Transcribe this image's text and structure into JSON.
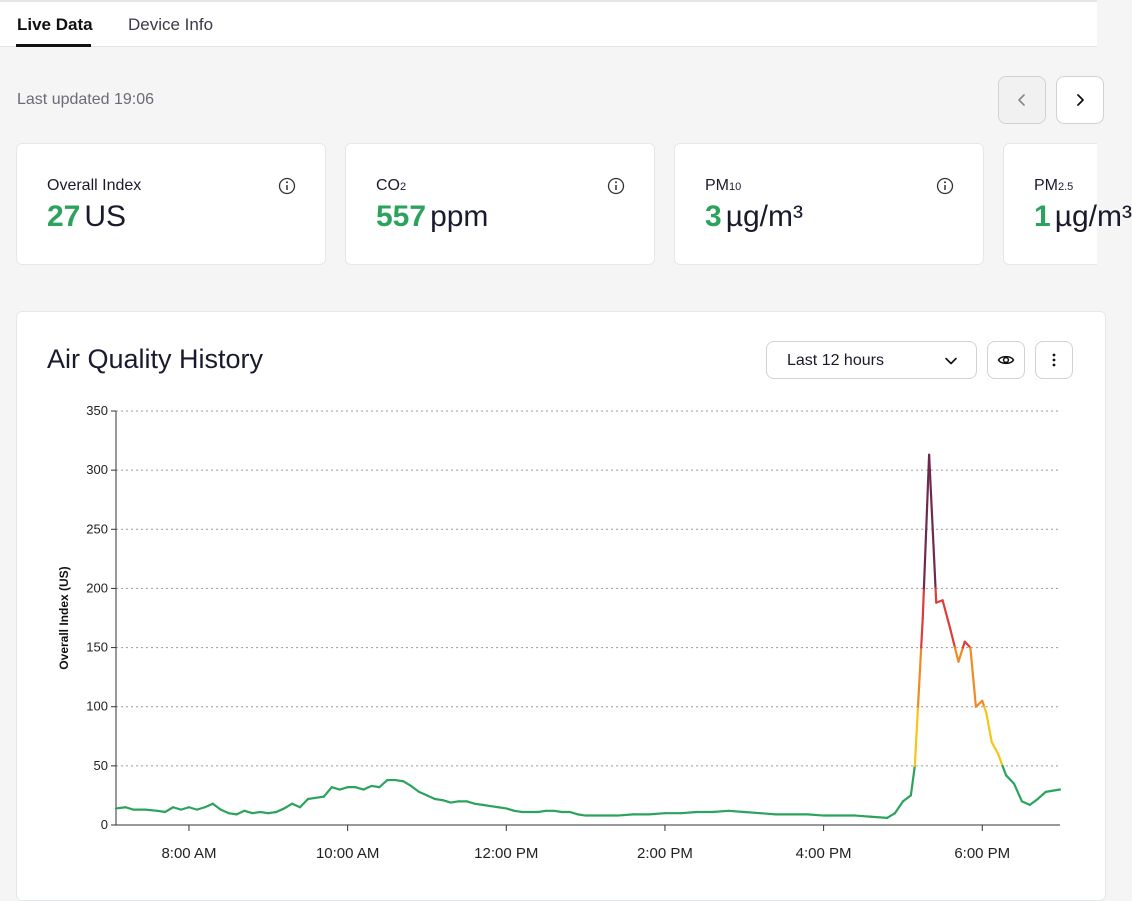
{
  "tabs": [
    {
      "label": "Live Data",
      "active": true
    },
    {
      "label": "Device Info",
      "active": false
    }
  ],
  "status": {
    "last_updated": "Last updated 19:06"
  },
  "cards": [
    {
      "label": "Overall Index",
      "sub": "",
      "value": "27",
      "unit": "US"
    },
    {
      "label": "CO",
      "sub": "2",
      "value": "557",
      "unit": "ppm"
    },
    {
      "label": "PM",
      "sub": "10",
      "value": "3",
      "unit": "µg/m³"
    },
    {
      "label": "PM",
      "sub": "2.5",
      "value": "1",
      "unit": "µg/m³"
    }
  ],
  "history": {
    "title": "Air Quality History",
    "range_selected": "Last 12 hours"
  },
  "icons": {
    "prev": "chevron-left-icon",
    "next": "chevron-right-icon",
    "info": "info-icon",
    "dropdown": "chevron-down-icon",
    "eye": "eye-icon",
    "more": "more-vertical-icon"
  },
  "colors": {
    "good": "#2ca35c",
    "moderate": "#f5c518",
    "sensitive": "#f08a24",
    "unhealthy": "#e03b3b",
    "very_unhealthy": "#6e2a4e"
  },
  "chart_data": {
    "type": "line",
    "ylabel": "Overall Index (US)",
    "xlabel": "",
    "ylim": [
      0,
      350
    ],
    "yticks": [
      0,
      50,
      100,
      150,
      200,
      250,
      300,
      350
    ],
    "xticks": [
      "8:00 AM",
      "10:00 AM",
      "12:00 PM",
      "2:00 PM",
      "4:00 PM",
      "6:00 PM"
    ],
    "xtick_hours": [
      8,
      10,
      12,
      14,
      16,
      18
    ],
    "xlim_hours": [
      7.08,
      18.98
    ],
    "grid": true,
    "thresholds": [
      50,
      100,
      150,
      200,
      300
    ],
    "series": [
      {
        "x_hours": [
          7.08,
          7.2,
          7.3,
          7.45,
          7.6,
          7.7,
          7.8,
          7.9,
          8.0,
          8.1,
          8.2,
          8.3,
          8.4,
          8.5,
          8.6,
          8.7,
          8.8,
          8.9,
          9.0,
          9.1,
          9.2,
          9.3,
          9.4,
          9.5,
          9.6,
          9.7,
          9.8,
          9.9,
          10.0,
          10.1,
          10.2,
          10.3,
          10.4,
          10.5,
          10.6,
          10.7,
          10.8,
          10.9,
          11.0,
          11.1,
          11.2,
          11.3,
          11.4,
          11.5,
          11.6,
          11.7,
          11.8,
          11.9,
          12.0,
          12.1,
          12.2,
          12.3,
          12.4,
          12.5,
          12.6,
          12.7,
          12.8,
          12.9,
          13.0,
          13.1,
          13.2,
          13.4,
          13.6,
          13.8,
          14.0,
          14.2,
          14.4,
          14.6,
          14.8,
          15.0,
          15.2,
          15.4,
          15.6,
          15.8,
          16.0,
          16.2,
          16.4,
          16.6,
          16.8,
          16.9,
          17.0,
          17.1,
          17.15,
          17.25,
          17.33,
          17.42,
          17.5,
          17.6,
          17.7,
          17.78,
          17.85,
          17.92,
          18.0,
          18.05,
          18.12,
          18.2,
          18.3,
          18.4,
          18.5,
          18.6,
          18.7,
          18.8,
          18.98
        ],
        "values": [
          14,
          15,
          13,
          13,
          12,
          11,
          15,
          13,
          15,
          13,
          15,
          18,
          13,
          10,
          9,
          12,
          10,
          11,
          10,
          11,
          14,
          18,
          15,
          22,
          23,
          24,
          32,
          30,
          32,
          32,
          30,
          33,
          32,
          38,
          38,
          37,
          33,
          28,
          25,
          22,
          21,
          19,
          20,
          20,
          18,
          17,
          16,
          15,
          14,
          12,
          11,
          11,
          11,
          12,
          12,
          11,
          11,
          9,
          8,
          8,
          8,
          8,
          9,
          9,
          10,
          10,
          11,
          11,
          12,
          11,
          10,
          9,
          9,
          9,
          8,
          8,
          8,
          7,
          6,
          10,
          20,
          25,
          50,
          175,
          313,
          188,
          190,
          165,
          138,
          155,
          150,
          100,
          105,
          95,
          70,
          60,
          42,
          35,
          20,
          17,
          22,
          28,
          30
        ]
      }
    ]
  }
}
